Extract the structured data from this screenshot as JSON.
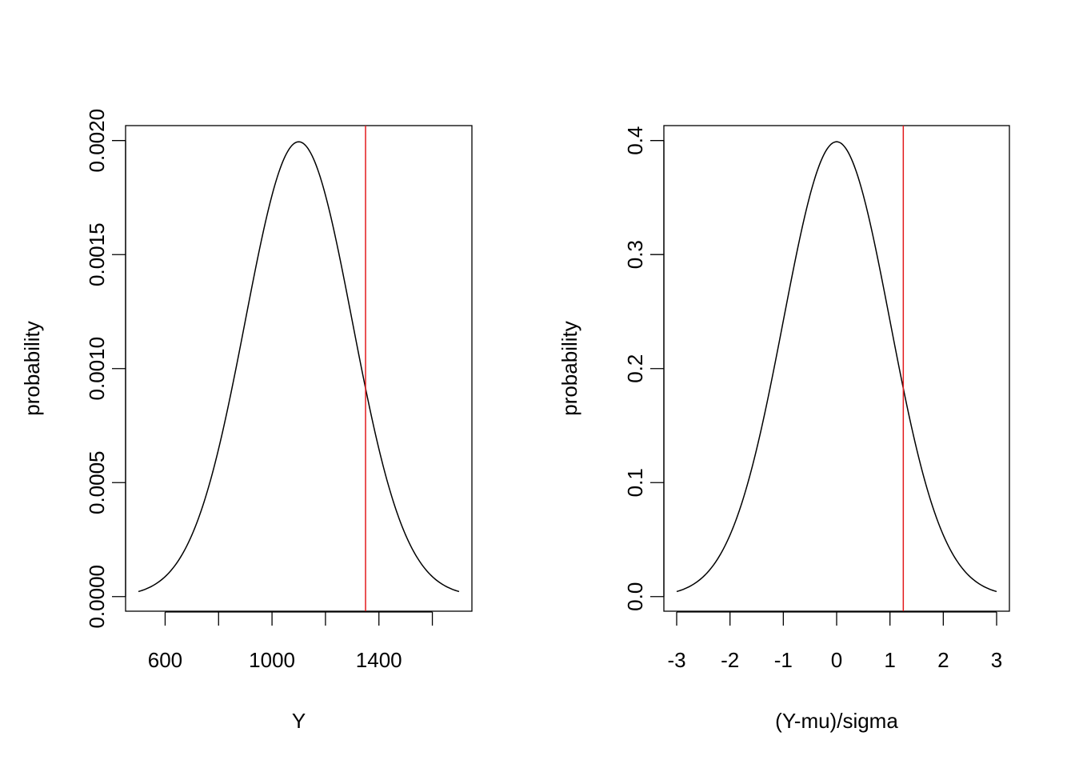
{
  "chart_data": [
    {
      "type": "line",
      "title": "",
      "xlabel": "Y",
      "ylabel": "probability",
      "xlim": [
        452,
        1748
      ],
      "ylim": [
        -6.4e-05,
        0.0020656
      ],
      "x_ticks": [
        600,
        800,
        1000,
        1200,
        1400,
        1600
      ],
      "x_tick_labels": [
        "600",
        "",
        "1000",
        "",
        "1400",
        ""
      ],
      "y_ticks": [
        0,
        0.0005,
        0.001,
        0.0015,
        0.002
      ],
      "y_tick_labels": [
        "0.0000",
        "0.0005",
        "0.0010",
        "0.0015",
        "0.0020"
      ],
      "grid": false,
      "series": [
        {
          "color": "#000000",
          "distribution": "normal",
          "mean": 1100,
          "sd": 200,
          "x_range": [
            500,
            1700
          ]
        }
      ],
      "vline": {
        "x": 1350,
        "color": "#e31a1c"
      }
    },
    {
      "type": "line",
      "title": "",
      "xlabel": "(Y-mu)/sigma",
      "ylabel": "probability",
      "xlim": [
        -3.24,
        3.24
      ],
      "ylim": [
        -0.0128,
        0.4131
      ],
      "x_ticks": [
        -3,
        -2,
        -1,
        0,
        1,
        2,
        3
      ],
      "x_tick_labels": [
        "-3",
        "-2",
        "-1",
        "0",
        "1",
        "2",
        "3"
      ],
      "y_ticks": [
        0,
        0.1,
        0.2,
        0.3,
        0.4
      ],
      "y_tick_labels": [
        "0.0",
        "0.1",
        "0.2",
        "0.3",
        "0.4"
      ],
      "grid": false,
      "series": [
        {
          "color": "#000000",
          "distribution": "normal",
          "mean": 0,
          "sd": 1,
          "x_range": [
            -3,
            3
          ]
        }
      ],
      "vline": {
        "x": 1.25,
        "color": "#e31a1c"
      }
    }
  ]
}
